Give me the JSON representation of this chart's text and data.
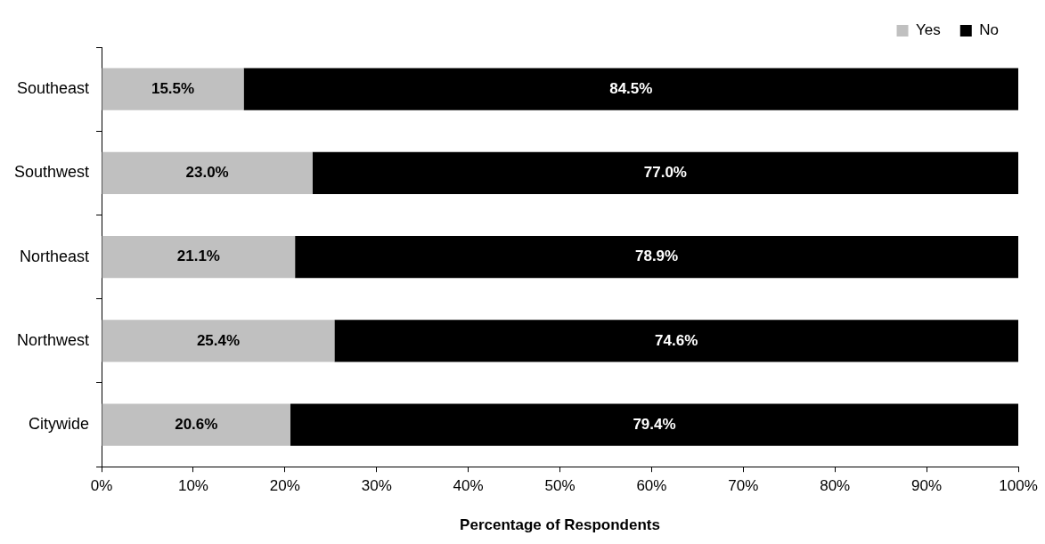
{
  "chart_data": {
    "type": "bar",
    "orientation": "horizontal",
    "stacked": true,
    "xlabel": "Percentage of Respondents",
    "categories": [
      "Southeast",
      "Southwest",
      "Northeast",
      "Northwest",
      "Citywide"
    ],
    "series": [
      {
        "name": "Yes",
        "color": "#c0c0c0",
        "values": [
          15.5,
          23.0,
          21.1,
          25.4,
          20.6
        ],
        "value_labels": [
          "15.5%",
          "23.0%",
          "21.1%",
          "25.4%",
          "20.6%"
        ]
      },
      {
        "name": "No",
        "color": "#000000",
        "values": [
          84.5,
          77.0,
          78.9,
          74.6,
          79.4
        ],
        "value_labels": [
          "84.5%",
          "77.0%",
          "78.9%",
          "74.6%",
          "79.4%"
        ]
      }
    ],
    "xlim": [
      0,
      100
    ],
    "xticks": [
      {
        "value": 0,
        "label": "0%"
      },
      {
        "value": 10,
        "label": "10%"
      },
      {
        "value": 20,
        "label": "20%"
      },
      {
        "value": 30,
        "label": "30%"
      },
      {
        "value": 40,
        "label": "40%"
      },
      {
        "value": 50,
        "label": "50%"
      },
      {
        "value": 60,
        "label": "60%"
      },
      {
        "value": 70,
        "label": "70%"
      },
      {
        "value": 80,
        "label": "80%"
      },
      {
        "value": 90,
        "label": "90%"
      },
      {
        "value": 100,
        "label": "100%"
      }
    ],
    "grid": false,
    "legend": "top right"
  }
}
